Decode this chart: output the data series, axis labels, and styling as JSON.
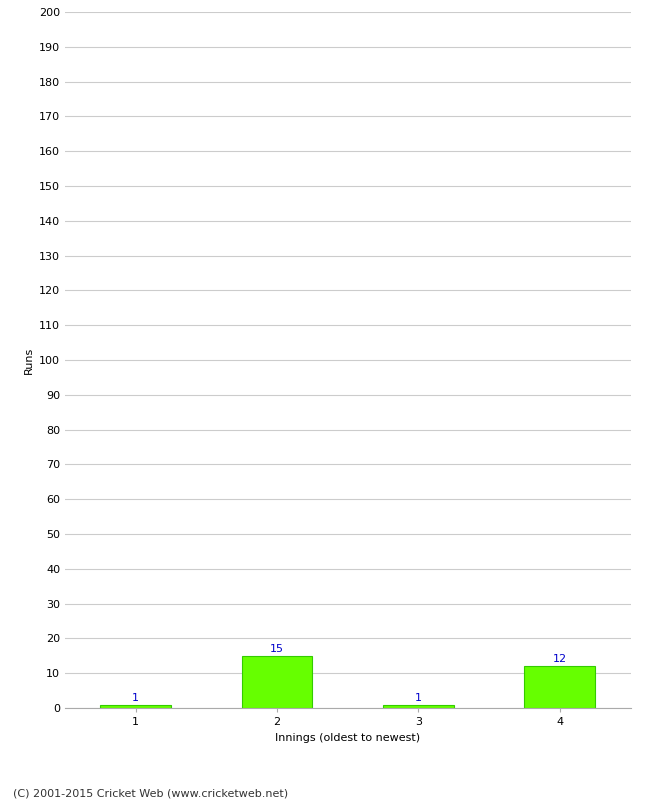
{
  "categories": [
    1,
    2,
    3,
    4
  ],
  "values": [
    1,
    15,
    1,
    12
  ],
  "bar_color": "#66ff00",
  "bar_edge_color": "#33cc00",
  "label_color": "#0000cc",
  "xlabel": "Innings (oldest to newest)",
  "ylabel": "Runs",
  "ylim": [
    0,
    200
  ],
  "yticks": [
    0,
    10,
    20,
    30,
    40,
    50,
    60,
    70,
    80,
    90,
    100,
    110,
    120,
    130,
    140,
    150,
    160,
    170,
    180,
    190,
    200
  ],
  "xticks": [
    1,
    2,
    3,
    4
  ],
  "background_color": "#ffffff",
  "grid_color": "#cccccc",
  "footer_text": "(C) 2001-2015 Cricket Web (www.cricketweb.net)",
  "label_fontsize": 8,
  "axis_tick_fontsize": 8,
  "axis_label_fontsize": 8,
  "footer_fontsize": 8,
  "bar_width": 0.5
}
